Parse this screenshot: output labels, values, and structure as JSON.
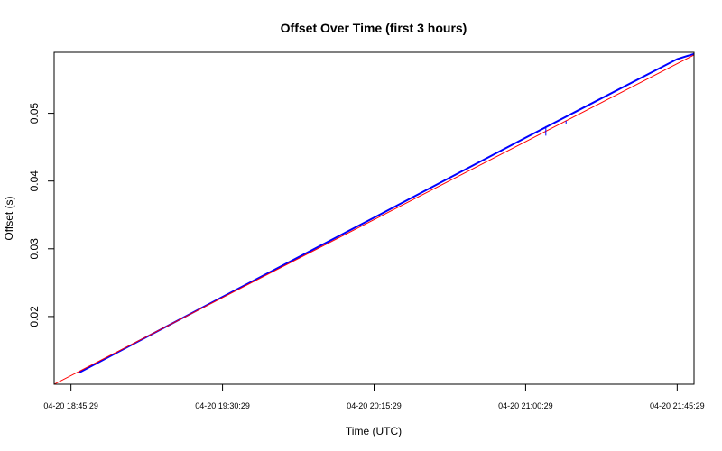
{
  "chart_data": {
    "type": "line",
    "title": "Offset Over Time (first 3 hours)",
    "xlabel": "Time (UTC)",
    "ylabel": "Offset (s)",
    "xlim": [
      "04-20 18:40:29",
      "04-20 21:50:29"
    ],
    "ylim": [
      0.01,
      0.059
    ],
    "x_ticks": [
      "04-20 18:45:29",
      "04-20 19:30:29",
      "04-20 20:15:29",
      "04-20 21:00:29",
      "04-20 21:45:29"
    ],
    "y_ticks": [
      0.02,
      0.03,
      0.04,
      0.05
    ],
    "y_tick_labels": [
      "0.02",
      "0.03",
      "0.04",
      "0.05"
    ],
    "grid": false,
    "legend": "none",
    "series": [
      {
        "color": "#0000ff",
        "x": [
          "04-20 18:47:49",
          "04-20 19:30:29",
          "04-20 20:15:29",
          "04-20 21:00:29",
          "04-20 21:45:29",
          "04-20 21:52:00"
        ],
        "y": [
          0.0117,
          0.0229,
          0.0346,
          0.0464,
          0.058,
          0.059
        ]
      },
      {
        "color": "#ff0000",
        "x": [
          "04-20 18:40:29",
          "04-20 21:52:00"
        ],
        "y": [
          0.01,
          0.059
        ]
      }
    ],
    "outliers": [
      {
        "color": "#0000ff",
        "x": "04-20 21:06:29",
        "y_low": 0.0467,
        "y_high": 0.0481
      },
      {
        "color": "#0000ff",
        "x": "04-20 21:12:29",
        "y_low": 0.0484,
        "y_high": 0.0489
      }
    ]
  }
}
